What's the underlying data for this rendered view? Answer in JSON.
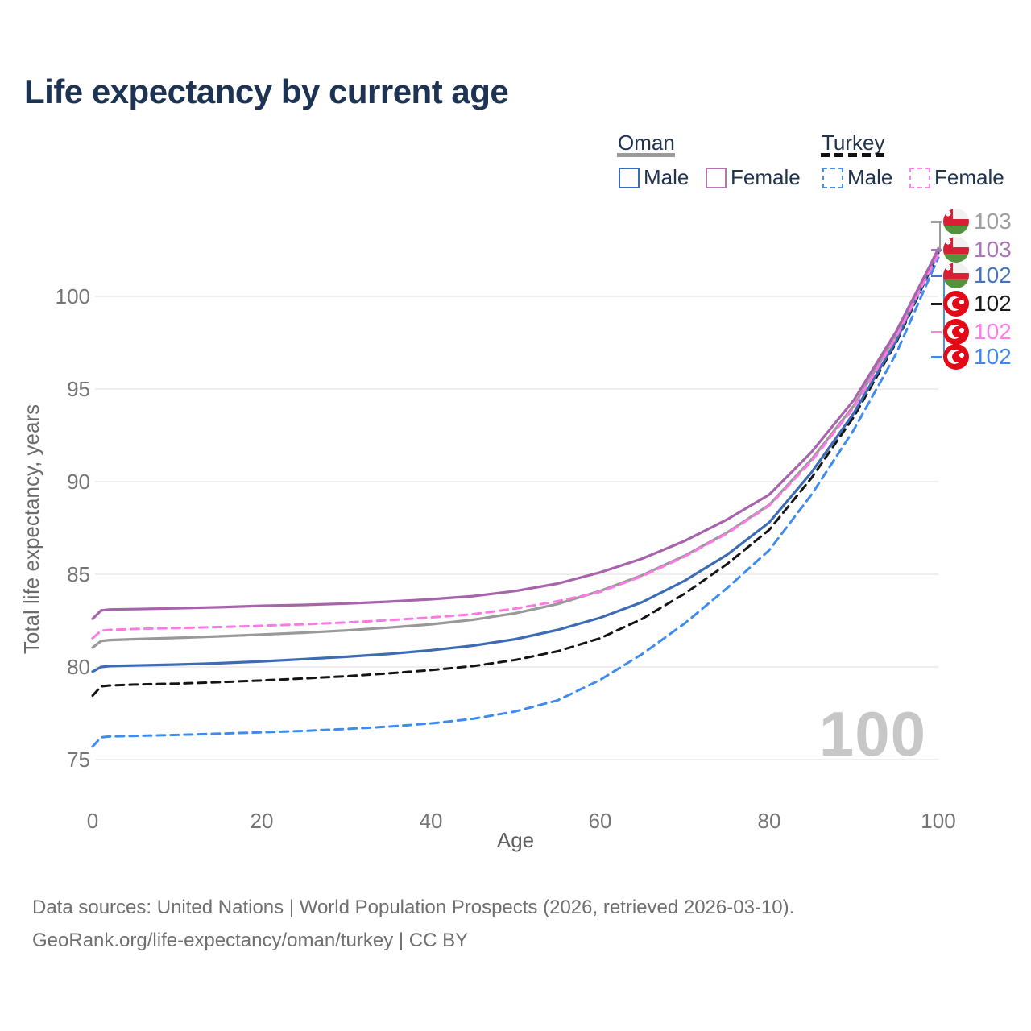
{
  "title": "Life expectancy by current age",
  "watermark": "100",
  "legend": {
    "groups": [
      {
        "label": "Oman",
        "line_style": "solid",
        "underline_color": "#9a9a9a",
        "items": [
          {
            "label": "Male",
            "color": "#3c6cb4",
            "dash": false
          },
          {
            "label": "Female",
            "color": "#b07ab0",
            "dash": false
          }
        ]
      },
      {
        "label": "Turkey",
        "line_style": "dashed",
        "underline_color": "#111111",
        "items": [
          {
            "label": "Male",
            "color": "#4a8df0",
            "dash": true
          },
          {
            "label": "Female",
            "color": "#ff85e8",
            "dash": true
          }
        ]
      }
    ]
  },
  "chart_data": {
    "type": "line",
    "title": "Life expectancy by current age",
    "xlabel": "Age",
    "ylabel": "Total life expectancy, years",
    "xlim": [
      0,
      100
    ],
    "ylim": [
      74.5,
      103
    ],
    "xticks": [
      0,
      20,
      40,
      60,
      80,
      100
    ],
    "yticks": [
      75,
      80,
      85,
      90,
      95,
      100
    ],
    "grid": "horizontal-only",
    "legend_position": "top-right",
    "x": [
      0,
      1,
      2,
      5,
      10,
      15,
      20,
      25,
      30,
      35,
      40,
      45,
      50,
      55,
      60,
      65,
      70,
      75,
      80,
      85,
      90,
      95,
      100
    ],
    "series": [
      {
        "name": "Turkey Male",
        "country": "Turkey",
        "sex": "male",
        "color": "#3e8bf2",
        "dash": true,
        "values": [
          75.7,
          76.2,
          76.25,
          76.28,
          76.33,
          76.4,
          76.47,
          76.55,
          76.65,
          76.78,
          76.95,
          77.2,
          77.6,
          78.2,
          79.3,
          80.7,
          82.35,
          84.25,
          86.3,
          89.3,
          92.8,
          96.9,
          102.1
        ]
      },
      {
        "name": "Turkey Total",
        "country": "Turkey",
        "sex": "both",
        "color": "#151515",
        "dash": true,
        "values": [
          78.45,
          78.95,
          79.0,
          79.05,
          79.1,
          79.18,
          79.27,
          79.38,
          79.5,
          79.65,
          79.83,
          80.05,
          80.38,
          80.85,
          81.55,
          82.6,
          83.95,
          85.55,
          87.4,
          90.2,
          93.5,
          97.5,
          102.35
        ]
      },
      {
        "name": "Oman Male",
        "country": "Oman",
        "sex": "male",
        "color": "#3c6cb4",
        "dash": false,
        "values": [
          79.75,
          80.0,
          80.05,
          80.08,
          80.13,
          80.2,
          80.3,
          80.42,
          80.55,
          80.7,
          80.9,
          81.15,
          81.5,
          82.0,
          82.65,
          83.5,
          84.65,
          86.05,
          87.8,
          90.5,
          93.7,
          97.6,
          102.45
        ]
      },
      {
        "name": "Oman Total",
        "country": "Oman",
        "sex": "both",
        "color": "#999999",
        "dash": false,
        "values": [
          81.05,
          81.4,
          81.45,
          81.5,
          81.57,
          81.65,
          81.75,
          81.85,
          81.97,
          82.12,
          82.3,
          82.55,
          82.9,
          83.4,
          84.1,
          84.95,
          86.0,
          87.25,
          88.75,
          91.2,
          94.1,
          97.9,
          102.6
        ]
      },
      {
        "name": "Turkey Female",
        "country": "Turkey",
        "sex": "female",
        "color": "#fb7ae3",
        "dash": true,
        "values": [
          81.55,
          81.95,
          82.0,
          82.05,
          82.1,
          82.15,
          82.22,
          82.3,
          82.4,
          82.52,
          82.67,
          82.85,
          83.15,
          83.55,
          84.05,
          84.9,
          85.95,
          87.2,
          88.7,
          91.1,
          94.0,
          97.8,
          102.3
        ]
      },
      {
        "name": "Oman Female",
        "country": "Oman",
        "sex": "female",
        "color": "#a763ab",
        "dash": false,
        "values": [
          82.6,
          83.05,
          83.1,
          83.12,
          83.17,
          83.22,
          83.3,
          83.35,
          83.42,
          83.52,
          83.65,
          83.82,
          84.1,
          84.5,
          85.1,
          85.85,
          86.8,
          87.95,
          89.3,
          91.6,
          94.4,
          98.1,
          102.55
        ]
      }
    ],
    "end_labels": [
      {
        "value": "103",
        "color": "#9e9e9e",
        "flag": "oman",
        "series": "Oman Total"
      },
      {
        "value": "103",
        "color": "#ab74b5",
        "flag": "oman",
        "series": "Oman Female"
      },
      {
        "value": "102",
        "color": "#4673c0",
        "flag": "oman",
        "series": "Oman Male"
      },
      {
        "value": "102",
        "color": "#1a1a1a",
        "flag": "turkey",
        "series": "Turkey Total"
      },
      {
        "value": "102",
        "color": "#fc7ee8",
        "flag": "turkey",
        "series": "Turkey Female"
      },
      {
        "value": "102",
        "color": "#4186f0",
        "flag": "turkey",
        "series": "Turkey Male"
      }
    ]
  },
  "footer": {
    "line1": "Data sources: United Nations | World Population Prospects (2026, retrieved 2026-03-10).",
    "line2": "GeoRank.org/life-expectancy/oman/turkey | CC BY"
  }
}
